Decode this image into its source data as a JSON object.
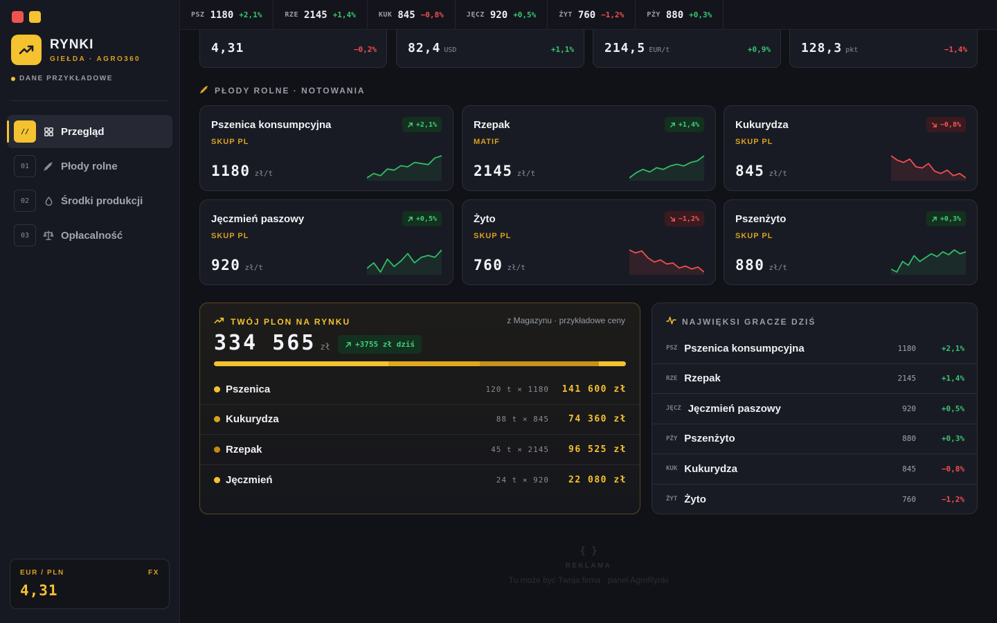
{
  "brand": {
    "title": "RYNKI",
    "subtitle": "GIEŁDA · AGRO360",
    "badge": "DANE PRZYKŁADOWE"
  },
  "nav": [
    {
      "num": "//",
      "label": "Przegląd",
      "icon": "grid-icon",
      "active": true
    },
    {
      "num": "01",
      "label": "Płody rolne",
      "icon": "wheat-icon",
      "active": false
    },
    {
      "num": "02",
      "label": "Środki produkcji",
      "icon": "drop-icon",
      "active": false
    },
    {
      "num": "03",
      "label": "Opłacalność",
      "icon": "scale-icon",
      "active": false
    }
  ],
  "fx": {
    "pair": "EUR / PLN",
    "tag": "FX",
    "value": "4,31"
  },
  "ticker": [
    {
      "code": "PSZ",
      "price": "1180",
      "change": "+2,1%",
      "dir": "up"
    },
    {
      "code": "RZE",
      "price": "2145",
      "change": "+1,4%",
      "dir": "up"
    },
    {
      "code": "KUK",
      "price": "845",
      "change": "−0,8%",
      "dir": "down"
    },
    {
      "code": "JĘCZ",
      "price": "920",
      "change": "+0,5%",
      "dir": "up"
    },
    {
      "code": "ŻYT",
      "price": "760",
      "change": "−1,2%",
      "dir": "down"
    },
    {
      "code": "PŻY",
      "price": "880",
      "change": "+0,3%",
      "dir": "up"
    }
  ],
  "indices": [
    {
      "value": "4,31",
      "unit": "",
      "change": "−0,2%",
      "dir": "down"
    },
    {
      "value": "82,4",
      "unit": "USD",
      "change": "+1,1%",
      "dir": "up"
    },
    {
      "value": "214,5",
      "unit": "EUR/t",
      "change": "+0,9%",
      "dir": "up"
    },
    {
      "value": "128,3",
      "unit": "pkt",
      "change": "−1,4%",
      "dir": "down"
    }
  ],
  "crops_section": {
    "title": "PŁODY ROLNE · NOTOWANIA"
  },
  "crops": [
    {
      "name": "Pszenica konsumpcyjna",
      "source": "SKUP PL",
      "price": "1180",
      "unit": "zł/t",
      "change": "+2,1%",
      "dir": "up",
      "spark": [
        3,
        5,
        4,
        7,
        6.5,
        8.5,
        8,
        10,
        9.5,
        9,
        12,
        13
      ]
    },
    {
      "name": "Rzepak",
      "source": "MATIF",
      "price": "2145",
      "unit": "zł/t",
      "change": "+1,4%",
      "dir": "up",
      "spark": [
        2,
        5,
        7,
        5.5,
        8,
        7,
        9,
        10,
        9,
        11,
        12,
        15
      ]
    },
    {
      "name": "Kukurydza",
      "source": "SKUP PL",
      "price": "845",
      "unit": "zł/t",
      "change": "−0,8%",
      "dir": "down",
      "spark": [
        14,
        12,
        11,
        12.5,
        9,
        8.5,
        10.5,
        7,
        6,
        7.5,
        5,
        6,
        4
      ]
    },
    {
      "name": "Jęczmień paszowy",
      "source": "SKUP PL",
      "price": "920",
      "unit": "zł/t",
      "change": "+0,5%",
      "dir": "up",
      "spark": [
        6,
        9,
        4,
        11,
        7,
        10,
        14,
        9,
        12,
        13,
        12,
        16
      ]
    },
    {
      "name": "Żyto",
      "source": "SKUP PL",
      "price": "760",
      "unit": "zł/t",
      "change": "−1,2%",
      "dir": "down",
      "spark": [
        15,
        13.5,
        14.5,
        11,
        9,
        10,
        8,
        8.5,
        6,
        7,
        5.5,
        6.5,
        4
      ]
    },
    {
      "name": "Pszenżyto",
      "source": "SKUP PL",
      "price": "880",
      "unit": "zł/t",
      "change": "+0,3%",
      "dir": "up",
      "spark": [
        3,
        1.5,
        7,
        5,
        10,
        7,
        9,
        11,
        9.5,
        12,
        10.5,
        13,
        11,
        12
      ]
    }
  ],
  "harvest": {
    "title": "TWÓJ PLON NA RYNKU",
    "note": "z Magazynu · przykładowe ceny",
    "total": "334 565",
    "unit": "zł",
    "today": "+3755 zł dziś",
    "rows": [
      {
        "name": "Pszenica",
        "calc": "120 t × 1180",
        "amount": "141 600 zł",
        "value": 141600,
        "color": "#f5c230"
      },
      {
        "name": "Kukurydza",
        "calc": "88 t × 845",
        "amount": "74 360 zł",
        "value": 74360,
        "color": "#d9a21e"
      },
      {
        "name": "Rzepak",
        "calc": "45 t × 2145",
        "amount": "96 525 zł",
        "value": 96525,
        "color": "#c48a14"
      },
      {
        "name": "Jęczmień",
        "calc": "24 t × 920",
        "amount": "22 080 zł",
        "value": 22080,
        "color": "#f5c230"
      }
    ]
  },
  "movers": {
    "title": "NAJWIĘKSI GRACZE DZIŚ",
    "rows": [
      {
        "code": "PSZ",
        "name": "Pszenica konsumpcyjna",
        "price": "1180",
        "change": "+2,1%",
        "dir": "up"
      },
      {
        "code": "RZE",
        "name": "Rzepak",
        "price": "2145",
        "change": "+1,4%",
        "dir": "up"
      },
      {
        "code": "JĘCZ",
        "name": "Jęczmień paszowy",
        "price": "920",
        "change": "+0,5%",
        "dir": "up"
      },
      {
        "code": "PŻY",
        "name": "Pszenżyto",
        "price": "880",
        "change": "+0,3%",
        "dir": "up"
      },
      {
        "code": "KUK",
        "name": "Kukurydza",
        "price": "845",
        "change": "−0,8%",
        "dir": "down"
      },
      {
        "code": "ŻYT",
        "name": "Żyto",
        "price": "760",
        "change": "−1,2%",
        "dir": "down"
      }
    ]
  },
  "ad": {
    "icon": "{ }",
    "label": "REKLAMA",
    "text": "Tu może być Twoja firma · panel AgroRynki"
  }
}
